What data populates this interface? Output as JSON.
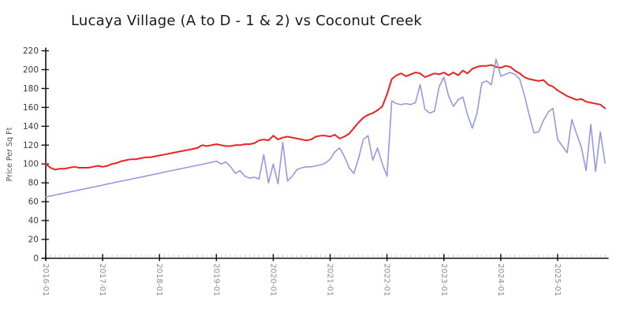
{
  "title": "Lucaya Village (A to D - 1 & 2) vs Coconut Creek",
  "theme": {
    "background": "#ffffff",
    "axis": "#141414",
    "y_tick_label": "#3a3a3a",
    "x_tick_label": "#8c8c8c",
    "minor_tick": "#c8c8c8",
    "title_color": "#1a1a1a"
  },
  "chart_data": {
    "type": "line",
    "title": "Lucaya Village (A to D - 1 & 2) vs Coconut Creek",
    "xlabel": "",
    "ylabel": "Price Per Sq Ft",
    "ylim": [
      0,
      220
    ],
    "y_ticks": [
      0,
      20,
      40,
      60,
      80,
      100,
      120,
      140,
      160,
      180,
      200,
      220
    ],
    "grid": false,
    "legend_position": "none",
    "x_start": "2016-01",
    "x_end": "2025-11",
    "x_interval": "monthly",
    "x_point_count": 119,
    "x_major_tick_labels": [
      "2016-01",
      "2017-01",
      "2018-01",
      "2019-01",
      "2020-01",
      "2021-01",
      "2022-01",
      "2023-01",
      "2024-01",
      "2025-01"
    ],
    "series": [
      {
        "name": "Coconut Creek",
        "color": "#e82222",
        "style": "solid",
        "values": [
          100,
          96,
          94,
          95,
          95,
          96,
          97,
          96,
          96,
          96,
          97,
          98,
          97,
          98,
          100,
          101,
          103,
          104,
          105,
          105,
          106,
          107,
          107,
          108,
          109,
          110,
          111,
          112,
          113,
          114,
          115,
          116,
          117,
          120,
          119,
          120,
          121,
          120,
          119,
          119,
          120,
          120,
          121,
          121,
          122,
          125,
          126,
          125,
          130,
          126,
          128,
          129,
          128,
          127,
          126,
          125,
          126,
          129,
          130,
          130,
          129,
          131,
          127,
          129,
          132,
          138,
          144,
          149,
          152,
          154,
          157,
          161,
          174,
          190,
          194,
          196,
          193,
          195,
          197,
          196,
          192,
          194,
          196,
          195,
          197,
          194,
          197,
          194,
          199,
          196,
          201,
          203,
          204,
          204,
          205,
          203,
          202,
          204,
          203,
          199,
          196,
          192,
          190,
          189,
          188,
          189,
          184,
          182,
          178,
          175,
          172,
          170,
          168,
          169,
          166,
          165,
          164,
          163,
          159
        ]
      },
      {
        "name": "Lucaya Village (A to D - 1 & 2)",
        "color": "#9598e2",
        "style": "solid",
        "values": [
          65,
          66.1,
          67.1,
          68.2,
          69.2,
          70.3,
          71.3,
          72.4,
          73.4,
          74.5,
          75.5,
          76.6,
          77.6,
          78.7,
          79.7,
          80.8,
          81.8,
          82.9,
          83.9,
          85,
          86,
          87.1,
          88.1,
          89.2,
          90.2,
          91.3,
          92.3,
          93.4,
          94.4,
          95.5,
          96.5,
          97.6,
          98.6,
          99.7,
          100.7,
          101.8,
          103,
          100,
          102,
          97,
          90,
          93,
          87,
          85,
          86,
          84,
          110,
          80,
          100,
          79,
          123,
          82,
          87,
          94,
          96,
          97,
          97,
          98,
          99,
          101,
          105,
          113,
          117,
          108,
          96,
          90,
          106,
          126,
          130,
          104,
          117,
          100,
          87,
          167,
          164,
          163,
          164,
          163,
          165,
          184,
          158,
          154,
          156,
          182,
          192,
          172,
          161,
          168,
          171,
          152,
          138,
          154,
          186,
          188,
          184,
          211,
          193,
          195,
          197,
          195,
          190,
          173,
          152,
          133,
          134,
          146,
          155,
          159,
          126,
          119,
          112,
          147,
          132,
          118,
          93,
          142,
          92,
          134,
          101
        ]
      }
    ]
  }
}
